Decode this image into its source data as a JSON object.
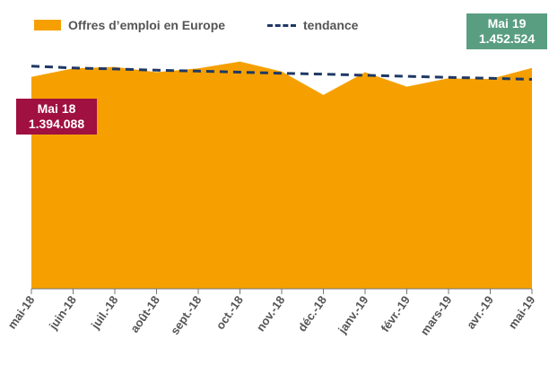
{
  "legend": {
    "area_label": "Offres d’emploi en Europe",
    "trend_label": "tendance"
  },
  "callouts": {
    "start": {
      "month": "Mai 18",
      "value": "1.394.088",
      "color": "#A01040"
    },
    "end": {
      "month": "Mai 19",
      "value": "1.452.524",
      "color": "#5A9E82"
    }
  },
  "colors": {
    "area": "#F5A000",
    "trend": "#1F3864",
    "axis": "#777777"
  },
  "chart_data": {
    "type": "area",
    "categories": [
      "mai-18",
      "juin-18",
      "juil.-18",
      "août-18",
      "sept.-18",
      "oct.-18",
      "nov.-18",
      "déc.-18",
      "janv.-19",
      "févr.-19",
      "mars-19",
      "avr.-19",
      "mai-19"
    ],
    "series": [
      {
        "name": "Offres d’emploi en Europe",
        "values": [
          1394088,
          1450000,
          1460000,
          1425000,
          1450000,
          1495000,
          1430000,
          1275000,
          1425000,
          1330000,
          1385000,
          1380000,
          1452524
        ]
      },
      {
        "name": "tendance",
        "values": [
          1465000,
          1453000,
          1446000,
          1438000,
          1432000,
          1425000,
          1418000,
          1412000,
          1405000,
          1398000,
          1391000,
          1385000,
          1378000
        ]
      }
    ],
    "ylim": [
      0,
      1900000
    ],
    "grid": false
  }
}
